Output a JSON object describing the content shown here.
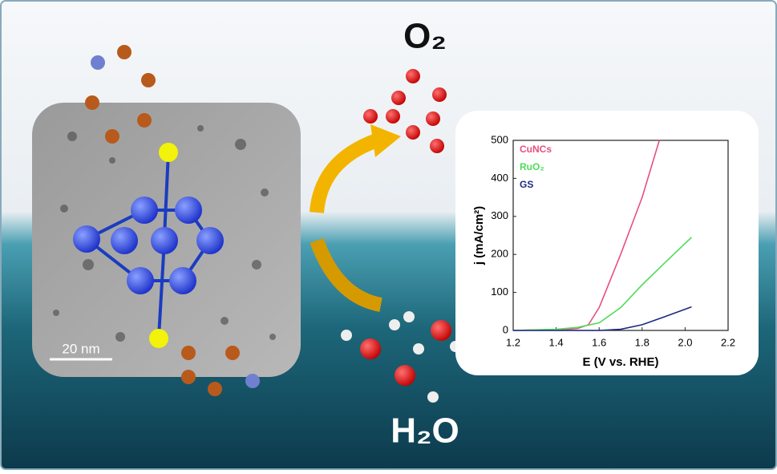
{
  "labels": {
    "oxygen": "O₂",
    "water": "H₂O",
    "scale_bar": "20 nm"
  },
  "chart_data": {
    "type": "line",
    "xlabel": "E (V vs. RHE)",
    "ylabel": "j (mA/cm²)",
    "xlim": [
      1.2,
      2.2
    ],
    "xticks": [
      1.2,
      1.4,
      1.6,
      1.8,
      {
        "value": 2.0,
        "label": "2.0"
      },
      2.2
    ],
    "ylim": [
      0,
      500
    ],
    "yticks": [
      0,
      100,
      200,
      300,
      400,
      500
    ],
    "series": [
      {
        "name": "CuNCs",
        "color": "#e8507e",
        "x": [
          1.2,
          1.45,
          1.5,
          1.55,
          1.6,
          1.7,
          1.8,
          1.88
        ],
        "values": [
          0,
          3,
          5,
          15,
          60,
          200,
          350,
          500
        ]
      },
      {
        "name": "RuO₂",
        "color": "#4fdc5a",
        "x": [
          1.2,
          1.4,
          1.5,
          1.6,
          1.7,
          1.8,
          1.9,
          2.03
        ],
        "values": [
          0,
          3,
          8,
          20,
          60,
          120,
          175,
          245
        ]
      },
      {
        "name": "GS",
        "color": "#1c2a80",
        "x": [
          1.2,
          1.6,
          1.7,
          1.8,
          1.9,
          2.03
        ],
        "values": [
          0,
          0,
          3,
          15,
          35,
          62
        ]
      }
    ]
  }
}
